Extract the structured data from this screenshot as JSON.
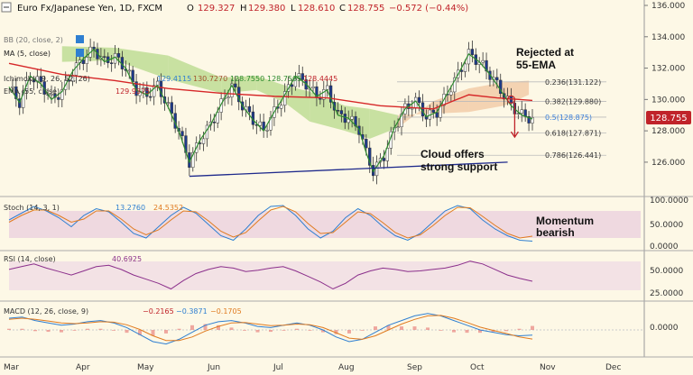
{
  "header": {
    "symbol": "Euro Fx/Japanese Yen, 1D, FXCM",
    "o_label": "O",
    "o": "129.327",
    "h_label": "H",
    "h": "129.380",
    "l_label": "L",
    "l": "128.610",
    "c_label": "C",
    "c": "128.755",
    "change": "−0.572 (−0.44%)"
  },
  "price_badge": "128.755",
  "overlay_legends": {
    "bb": "BB (20, close, 2)",
    "ma5": "MA (5, close)",
    "ichimoku": "Ichimoku (9, 26, 52, 26)",
    "ichimoku_values": [
      "129.4115",
      "130.7270",
      "128.7550",
      "128.7505",
      "128.4445"
    ],
    "ema": "EMA (55, close)",
    "ema_value": "129.9375"
  },
  "annotations": {
    "rejected_1": "Rejected at",
    "rejected_2": "55-EMA",
    "cloud_1": "Cloud offers",
    "cloud_2": "strong support",
    "momentum_1": "Momentum",
    "momentum_2": "bearish"
  },
  "fib_levels": [
    {
      "label": "0.236(131.122)",
      "value": 131.122,
      "color": "#333333"
    },
    {
      "label": "0.382(129.880)",
      "value": 129.88,
      "color": "#333333"
    },
    {
      "label": "0.5(128.875)",
      "value": 128.875,
      "color": "#3b7fd9"
    },
    {
      "label": "0.618(127.871)",
      "value": 127.871,
      "color": "#333333"
    },
    {
      "label": "0.786(126.441)",
      "value": 126.441,
      "color": "#333333"
    }
  ],
  "panels": {
    "stoch": {
      "label": "Stoch (14, 3, 1)",
      "v1": "13.2760",
      "v2": "24.5352",
      "ticks": [
        "100.0000",
        "50.0000",
        "0.0000"
      ]
    },
    "rsi": {
      "label": "RSI (14, close)",
      "v1": "40.6925",
      "ticks": [
        "50.0000",
        "25.0000"
      ]
    },
    "macd": {
      "label": "MACD (12, 26, close, 9)",
      "v1": "−0.2165",
      "v2": "−0.3871",
      "v3": "−0.1705",
      "ticks": [
        "0.0000"
      ]
    }
  },
  "colors": {
    "background": "#fdf8e6",
    "ema": "#d62728",
    "ma5": "#2e8b2e",
    "cloud_bull": "#b5d98a",
    "cloud_bear": "#f0c7a0",
    "stoch_band": "#e6c4dc",
    "rsi_band": "#edd3e4",
    "badge": "#c0232a",
    "support_line": "#1f2a8c",
    "candle": "#333333"
  },
  "chart_data": {
    "type": "candlestick",
    "x_axis_labels": [
      "Mar",
      "Apr",
      "May",
      "Jun",
      "Jul",
      "Aug",
      "Sep",
      "Oct",
      "Nov",
      "Dec"
    ],
    "y_ticks": [
      136.0,
      134.0,
      132.0,
      130.0,
      128.0,
      126.0
    ],
    "ylim": [
      124.5,
      136.0
    ],
    "close_path": [
      [
        0,
        130.8
      ],
      [
        3,
        129.8
      ],
      [
        6,
        131.5
      ],
      [
        9,
        131.0
      ],
      [
        12,
        130.0
      ],
      [
        15,
        130.5
      ],
      [
        18,
        131.8
      ],
      [
        21,
        132.6
      ],
      [
        24,
        133.2
      ],
      [
        27,
        132.4
      ],
      [
        30,
        132.7
      ],
      [
        33,
        132.0
      ],
      [
        36,
        130.6
      ],
      [
        39,
        130.3
      ],
      [
        42,
        130.9
      ],
      [
        45,
        129.5
      ],
      [
        48,
        128.0
      ],
      [
        51,
        126.0
      ],
      [
        54,
        127.4
      ],
      [
        57,
        128.4
      ],
      [
        60,
        129.7
      ],
      [
        63,
        130.9
      ],
      [
        66,
        129.6
      ],
      [
        69,
        128.7
      ],
      [
        72,
        128.0
      ],
      [
        75,
        129.2
      ],
      [
        78,
        130.3
      ],
      [
        81,
        131.5
      ],
      [
        84,
        131.0
      ],
      [
        87,
        130.2
      ],
      [
        90,
        130.6
      ],
      [
        93,
        129.0
      ],
      [
        96,
        128.8
      ],
      [
        99,
        128.1
      ],
      [
        101,
        126.6
      ],
      [
        103,
        125.4
      ],
      [
        106,
        126.4
      ],
      [
        109,
        128.2
      ],
      [
        112,
        129.4
      ],
      [
        115,
        129.9
      ],
      [
        118,
        128.9
      ],
      [
        121,
        129.2
      ],
      [
        124,
        130.4
      ],
      [
        127,
        131.6
      ],
      [
        130,
        132.9
      ],
      [
        133,
        132.4
      ],
      [
        136,
        131.6
      ],
      [
        139,
        130.6
      ],
      [
        142,
        129.6
      ],
      [
        145,
        129.0
      ],
      [
        148,
        128.755
      ]
    ],
    "ema55": [
      [
        0,
        132.3
      ],
      [
        15,
        131.6
      ],
      [
        30,
        131.2
      ],
      [
        45,
        130.7
      ],
      [
        60,
        130.4
      ],
      [
        75,
        130.2
      ],
      [
        90,
        130.1
      ],
      [
        105,
        129.6
      ],
      [
        120,
        129.4
      ],
      [
        130,
        130.3
      ],
      [
        138,
        130.1
      ],
      [
        148,
        129.94
      ]
    ],
    "support_line": [
      [
        51,
        125.1
      ],
      [
        141,
        126.0
      ]
    ],
    "rejection_point": [
      142,
      130.0
    ],
    "arrow": [
      [
        143,
        129.8
      ],
      [
        143,
        127.6
      ]
    ],
    "cloud": [
      [
        15,
        133.4,
        132.4
      ],
      [
        30,
        133.3,
        132.5
      ],
      [
        45,
        132.8,
        131.3
      ],
      [
        60,
        131.4,
        130.4
      ],
      [
        70,
        131.5,
        130.6
      ],
      [
        78,
        130.9,
        129.8
      ],
      [
        85,
        130.5,
        128.6
      ],
      [
        95,
        129.6,
        128.0
      ],
      [
        102,
        129.4,
        127.5
      ],
      [
        110,
        129.0,
        128.2
      ],
      [
        120,
        129.1,
        129.9
      ],
      [
        130,
        129.2,
        130.7
      ],
      [
        140,
        129.6,
        131.1
      ],
      [
        147,
        130.3,
        131.2
      ]
    ],
    "stoch_range": [
      0,
      100
    ],
    "stoch_k": [
      60,
      75,
      90,
      80,
      65,
      45,
      70,
      85,
      78,
      55,
      30,
      20,
      45,
      70,
      88,
      75,
      50,
      25,
      15,
      40,
      70,
      90,
      92,
      70,
      40,
      20,
      35,
      65,
      85,
      70,
      45,
      25,
      15,
      30,
      55,
      80,
      92,
      85,
      60,
      40,
      25,
      15,
      13
    ],
    "stoch_d": [
      55,
      70,
      82,
      82,
      70,
      55,
      62,
      80,
      80,
      62,
      40,
      27,
      38,
      60,
      80,
      78,
      58,
      35,
      22,
      32,
      58,
      82,
      90,
      78,
      52,
      30,
      32,
      55,
      78,
      74,
      54,
      32,
      20,
      27,
      47,
      70,
      88,
      87,
      68,
      48,
      30,
      20,
      24
    ],
    "rsi_range": [
      15,
      80
    ],
    "rsi": [
      58,
      62,
      66,
      60,
      55,
      50,
      56,
      62,
      64,
      58,
      50,
      44,
      38,
      30,
      42,
      52,
      58,
      62,
      60,
      55,
      57,
      60,
      62,
      56,
      48,
      40,
      30,
      38,
      50,
      56,
      60,
      58,
      55,
      56,
      58,
      60,
      64,
      70,
      66,
      58,
      50,
      45,
      41
    ],
    "macd_range": [
      -1.0,
      1.0
    ],
    "macd_line": [
      0.5,
      0.55,
      0.4,
      0.3,
      0.2,
      0.25,
      0.35,
      0.4,
      0.3,
      0.1,
      -0.2,
      -0.5,
      -0.6,
      -0.4,
      -0.1,
      0.2,
      0.35,
      0.4,
      0.3,
      0.15,
      0.1,
      0.2,
      0.3,
      0.2,
      0.0,
      -0.3,
      -0.5,
      -0.4,
      -0.1,
      0.2,
      0.4,
      0.6,
      0.7,
      0.6,
      0.4,
      0.2,
      0.0,
      -0.1,
      -0.2,
      -0.25,
      -0.22
    ],
    "macd_signal": [
      0.45,
      0.5,
      0.45,
      0.38,
      0.3,
      0.27,
      0.3,
      0.35,
      0.33,
      0.22,
      0.02,
      -0.25,
      -0.45,
      -0.45,
      -0.3,
      -0.05,
      0.15,
      0.3,
      0.32,
      0.25,
      0.18,
      0.2,
      0.25,
      0.22,
      0.1,
      -0.12,
      -0.35,
      -0.4,
      -0.25,
      0.0,
      0.25,
      0.45,
      0.6,
      0.62,
      0.5,
      0.32,
      0.12,
      -0.02,
      -0.15,
      -0.3,
      -0.39
    ]
  }
}
